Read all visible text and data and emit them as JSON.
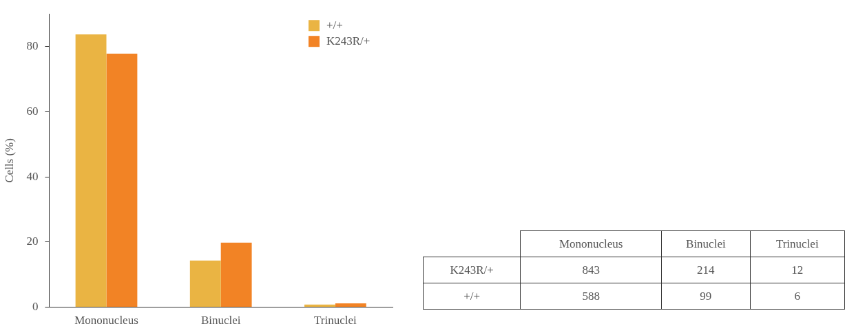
{
  "chart_data": [
    {
      "type": "bar",
      "ylabel": "Cells (%)",
      "categories": [
        "Mononucleus",
        "Binuclei",
        "Trinuclei"
      ],
      "series": [
        {
          "name": "+/+",
          "color": "#eab443",
          "values": [
            83.7,
            14.3,
            0.8
          ]
        },
        {
          "name": "K243R/+",
          "color": "#f28325",
          "values": [
            77.8,
            19.8,
            1.2
          ]
        }
      ],
      "ylim": [
        0,
        90
      ],
      "yticks": [
        0,
        20,
        40,
        60,
        80
      ],
      "grid": false,
      "legend": "top right"
    },
    {
      "type": "other",
      "data_labels": true,
      "categories": [
        "Mononucleus",
        "Binuclei",
        "Trinuclei"
      ],
      "series": [
        {
          "name": "K243R/+",
          "values": [
            843,
            214,
            12
          ]
        },
        {
          "name": "+/+",
          "values": [
            588,
            99,
            6
          ]
        }
      ]
    }
  ]
}
